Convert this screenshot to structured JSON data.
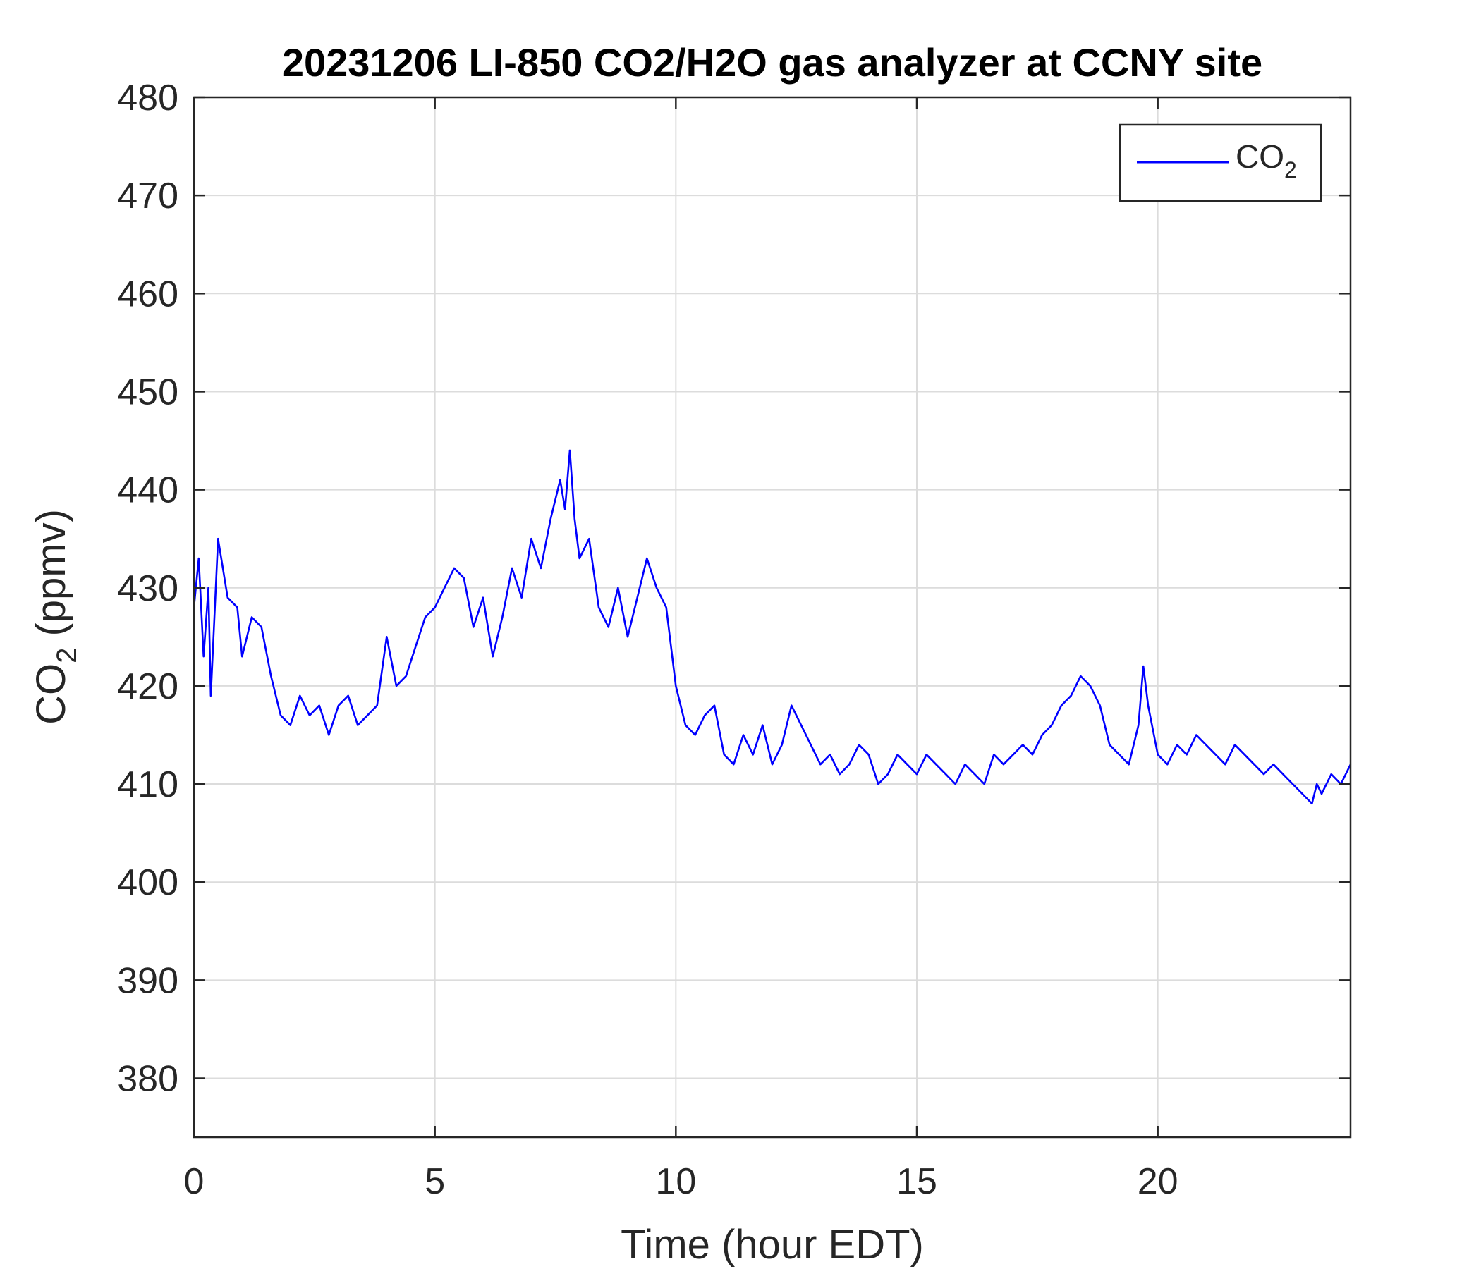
{
  "chart_data": {
    "type": "line",
    "title": "20231206 LI-850 CO2/H2O gas analyzer at CCNY site",
    "xlabel": "Time (hour EDT)",
    "ylabel": {
      "prefix": "CO",
      "subscript": "2",
      "suffix": " (ppmv)"
    },
    "xlim": [
      0,
      24
    ],
    "ylim": [
      374,
      480
    ],
    "xticks": [
      0,
      5,
      10,
      15,
      20
    ],
    "yticks": [
      380,
      390,
      400,
      410,
      420,
      430,
      440,
      450,
      460,
      470,
      480
    ],
    "grid": true,
    "legend": {
      "position": "top-right",
      "entries": [
        {
          "prefix": "CO",
          "subscript": "2"
        }
      ]
    },
    "series": [
      {
        "name": "CO2",
        "color": "#0000ff",
        "x": [
          0,
          0.1,
          0.2,
          0.3,
          0.35,
          0.5,
          0.7,
          0.9,
          1.0,
          1.2,
          1.4,
          1.6,
          1.8,
          2.0,
          2.2,
          2.4,
          2.6,
          2.8,
          3.0,
          3.2,
          3.4,
          3.6,
          3.8,
          4.0,
          4.2,
          4.4,
          4.6,
          4.8,
          5.0,
          5.2,
          5.4,
          5.6,
          5.8,
          6.0,
          6.2,
          6.4,
          6.6,
          6.8,
          7.0,
          7.2,
          7.4,
          7.6,
          7.7,
          7.8,
          7.9,
          8.0,
          8.2,
          8.4,
          8.6,
          8.8,
          9.0,
          9.2,
          9.4,
          9.6,
          9.8,
          10.0,
          10.2,
          10.4,
          10.6,
          10.8,
          11.0,
          11.2,
          11.4,
          11.6,
          11.8,
          12.0,
          12.2,
          12.4,
          12.6,
          12.8,
          13.0,
          13.2,
          13.4,
          13.6,
          13.8,
          14.0,
          14.2,
          14.4,
          14.6,
          14.8,
          15.0,
          15.2,
          15.4,
          15.6,
          15.8,
          16.0,
          16.2,
          16.4,
          16.6,
          16.8,
          17.0,
          17.2,
          17.4,
          17.6,
          17.8,
          18.0,
          18.2,
          18.4,
          18.6,
          18.8,
          19.0,
          19.2,
          19.4,
          19.6,
          19.7,
          19.8,
          20.0,
          20.2,
          20.4,
          20.6,
          20.8,
          21.0,
          21.2,
          21.4,
          21.6,
          21.8,
          22.0,
          22.2,
          22.4,
          22.6,
          22.8,
          23.0,
          23.2,
          23.3,
          23.4,
          23.6,
          23.8,
          24.0
        ],
        "y": [
          428,
          433,
          423,
          430,
          419,
          435,
          429,
          428,
          423,
          427,
          426,
          421,
          417,
          416,
          419,
          417,
          418,
          415,
          418,
          419,
          416,
          417,
          418,
          425,
          420,
          421,
          424,
          427,
          428,
          430,
          432,
          431,
          426,
          429,
          423,
          427,
          432,
          429,
          435,
          432,
          437,
          441,
          438,
          444,
          437,
          433,
          435,
          428,
          426,
          430,
          425,
          429,
          433,
          430,
          428,
          420,
          416,
          415,
          417,
          418,
          413,
          412,
          415,
          413,
          416,
          412,
          414,
          418,
          416,
          414,
          412,
          413,
          411,
          412,
          414,
          413,
          410,
          411,
          413,
          412,
          411,
          413,
          412,
          411,
          410,
          412,
          411,
          410,
          413,
          412,
          413,
          414,
          413,
          415,
          416,
          418,
          419,
          421,
          420,
          418,
          414,
          413,
          412,
          416,
          422,
          418,
          413,
          412,
          414,
          413,
          415,
          414,
          413,
          412,
          414,
          413,
          412,
          411,
          412,
          411,
          410,
          409,
          408,
          410,
          409,
          411,
          410,
          412
        ]
      }
    ]
  }
}
